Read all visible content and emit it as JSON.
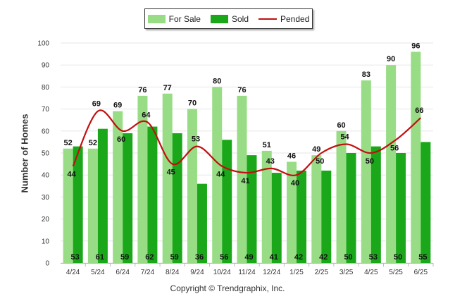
{
  "chart_data": {
    "type": "bar",
    "categories": [
      "4/24",
      "5/24",
      "6/24",
      "7/24",
      "8/24",
      "9/24",
      "10/24",
      "11/24",
      "12/24",
      "1/25",
      "2/25",
      "3/25",
      "4/25",
      "5/25",
      "6/25"
    ],
    "series": [
      {
        "name": "For Sale",
        "type": "bar",
        "color": "#98dd85",
        "values": [
          52,
          52,
          69,
          76,
          77,
          70,
          80,
          76,
          51,
          46,
          49,
          60,
          83,
          90,
          96
        ]
      },
      {
        "name": "Sold",
        "type": "bar",
        "color": "#1aa81a",
        "values": [
          53,
          61,
          59,
          62,
          59,
          36,
          56,
          49,
          41,
          42,
          42,
          50,
          53,
          50,
          55
        ]
      },
      {
        "name": "Pended",
        "type": "line",
        "color": "#c01010",
        "values": [
          44,
          69,
          60,
          64,
          45,
          53,
          44,
          41,
          43,
          40,
          50,
          54,
          50,
          56,
          66
        ]
      }
    ],
    "title": "",
    "xlabel": "",
    "ylabel": "Number of Homes",
    "ylim": [
      0,
      100
    ],
    "yticks": [
      0,
      10,
      20,
      30,
      40,
      50,
      60,
      70,
      80,
      90,
      100
    ],
    "grid": true,
    "legend": "top-center"
  },
  "legend": {
    "for_sale": "For Sale",
    "sold": "Sold",
    "pended": "Pended"
  },
  "footer": {
    "copyright": "Copyright © Trendgraphix, Inc."
  },
  "colors": {
    "for_sale": "#98dd85",
    "sold": "#1aa81a",
    "pended": "#c01010",
    "grid": "#e6e6e6"
  }
}
